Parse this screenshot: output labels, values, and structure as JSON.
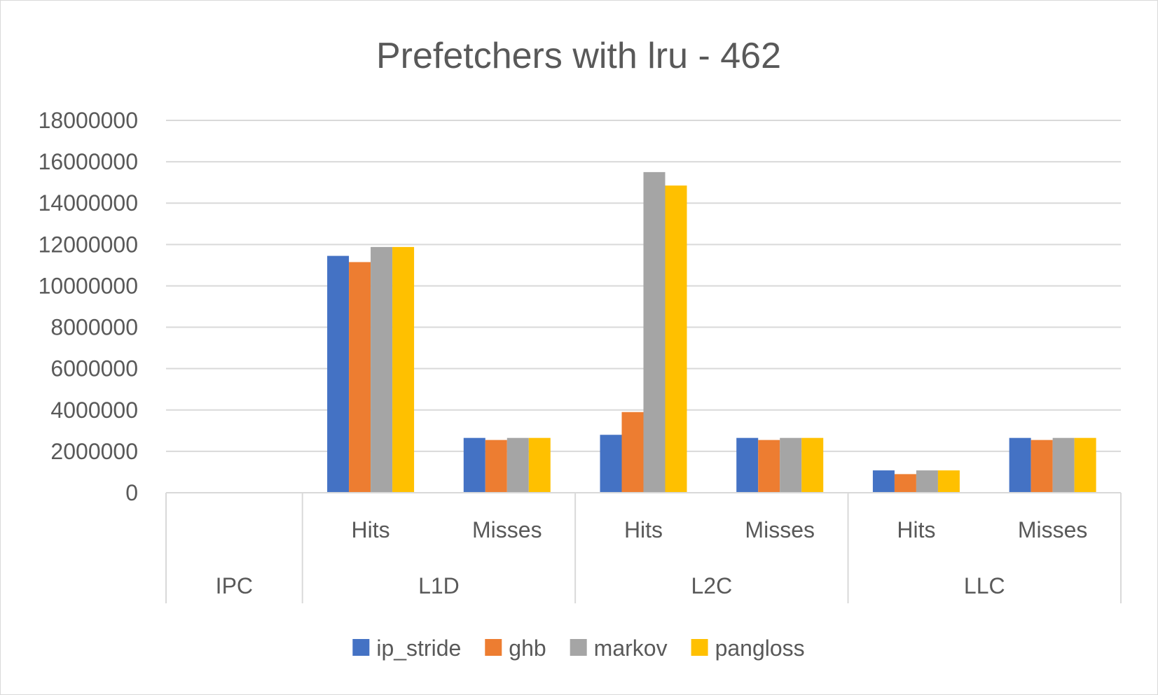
{
  "chart_data": {
    "type": "bar",
    "title": "Prefetchers with lru - 462",
    "xlabel": "",
    "ylabel": "",
    "ylim": [
      0,
      18000000
    ],
    "yticks": [
      0,
      2000000,
      4000000,
      6000000,
      8000000,
      10000000,
      12000000,
      14000000,
      16000000,
      18000000
    ],
    "yticks_text": [
      "0",
      "2000000",
      "4000000",
      "6000000",
      "8000000",
      "10000000",
      "12000000",
      "14000000",
      "16000000",
      "18000000"
    ],
    "grid": true,
    "legend_position": "bottom",
    "groups": [
      {
        "label": "IPC",
        "subcategories": [
          ""
        ]
      },
      {
        "label": "L1D",
        "subcategories": [
          "Hits",
          "Misses"
        ]
      },
      {
        "label": "L2C",
        "subcategories": [
          "Hits",
          "Misses"
        ]
      },
      {
        "label": "LLC",
        "subcategories": [
          "Hits",
          "Misses"
        ]
      }
    ],
    "categories": [
      "IPC",
      "L1D Hits",
      "L1D Misses",
      "L2C Hits",
      "L2C Misses",
      "LLC Hits",
      "LLC Misses"
    ],
    "series": [
      {
        "name": "ip_stride",
        "color": "#4472C4",
        "values": [
          1,
          11450000,
          2650000,
          2800000,
          2650000,
          1080000,
          2650000
        ]
      },
      {
        "name": "ghb",
        "color": "#ED7D31",
        "values": [
          1,
          11150000,
          2550000,
          3900000,
          2550000,
          900000,
          2550000
        ]
      },
      {
        "name": "markov",
        "color": "#A5A5A5",
        "values": [
          1,
          11880000,
          2650000,
          15500000,
          2650000,
          1080000,
          2650000
        ]
      },
      {
        "name": "pangloss",
        "color": "#FFC000",
        "values": [
          1,
          11880000,
          2650000,
          14850000,
          2650000,
          1080000,
          2650000
        ]
      }
    ]
  }
}
